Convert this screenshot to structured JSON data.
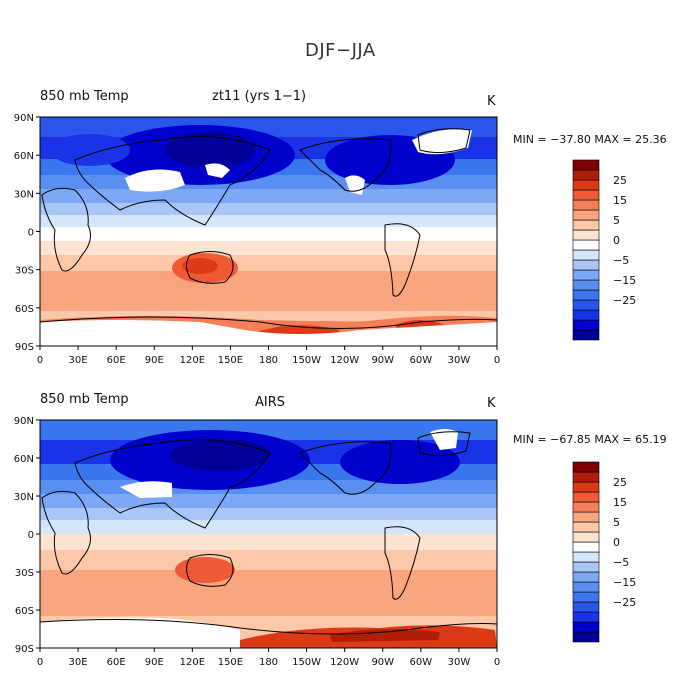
{
  "figure_title": "DJF−JJA",
  "colors": {
    "bands": [
      "#000099",
      "#0000cc",
      "#1a33e6",
      "#2a55ea",
      "#3a77ee",
      "#5a8ff2",
      "#7ea8f5",
      "#a8c6f8",
      "#d4e6fb",
      "#ffffff",
      "#fde4d0",
      "#fcc8a8",
      "#f9a57f",
      "#f57f58",
      "#ee5a35",
      "#dc3a16",
      "#b11e08",
      "#7e0000"
    ],
    "land": "#ffffff",
    "coast": "#000000"
  },
  "panels": [
    {
      "left_title": "850 mb Temp",
      "center_title": "zt11 (yrs 1−1)",
      "units": "K",
      "min_max_text": "MIN = −37.80  MAX =  25.36"
    },
    {
      "left_title": "850 mb Temp",
      "center_title": "AIRS",
      "units": "K",
      "min_max_text": "MIN = −67.85  MAX =  65.19"
    }
  ],
  "lat_labels": [
    "90N",
    "60N",
    "30N",
    "0",
    "30S",
    "60S",
    "90S"
  ],
  "lon_labels": [
    "0",
    "30E",
    "60E",
    "90E",
    "120E",
    "150E",
    "180",
    "150W",
    "120W",
    "90W",
    "60W",
    "30W",
    "0"
  ],
  "colorbar_labels": [
    "25",
    "15",
    "5",
    "0",
    "−5",
    "−15",
    "−25"
  ]
}
